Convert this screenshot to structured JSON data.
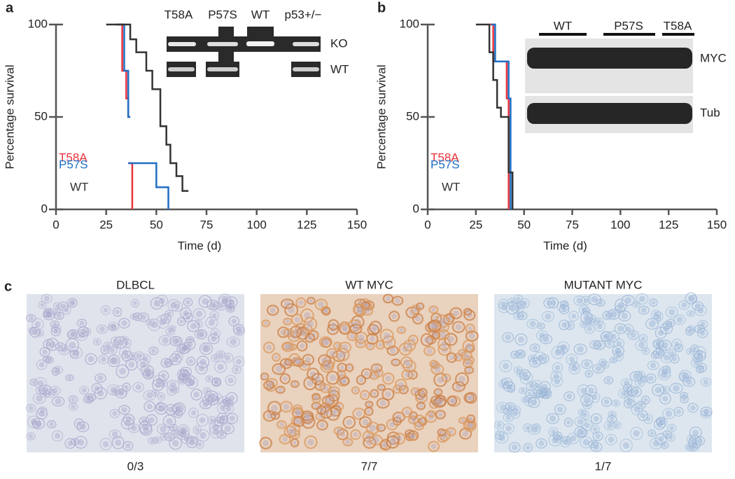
{
  "chart_data": [
    {
      "type": "survival",
      "label": "a",
      "xlabel": "Time (d)",
      "ylabel": "Percentage survival",
      "xlim": [
        0,
        150
      ],
      "ylim": [
        0,
        100
      ],
      "xticks": [
        0,
        25,
        50,
        75,
        100,
        125,
        150
      ],
      "yticks": [
        0,
        50,
        100
      ],
      "series": [
        {
          "name": "T58A",
          "color": "#e8323c",
          "x": [
            30,
            33,
            33,
            35,
            35,
            36,
            36,
            37,
            null,
            36,
            38,
            38
          ],
          "values": [
            100,
            100,
            75,
            75,
            60,
            60,
            50,
            50,
            null,
            25,
            25,
            0
          ]
        },
        {
          "name": "P57S",
          "color": "#1f6fc4",
          "x": [
            30,
            34,
            34,
            36,
            36,
            37,
            null,
            36,
            50,
            50,
            56,
            56
          ],
          "values": [
            100,
            100,
            75,
            75,
            50,
            50,
            null,
            25,
            25,
            12,
            12,
            0
          ]
        },
        {
          "name": "WT",
          "color": "#333333",
          "x": [
            25,
            37,
            37,
            40,
            40,
            45,
            45,
            48,
            48,
            52,
            52,
            55,
            55,
            57,
            57,
            60,
            60,
            63,
            63,
            66
          ],
          "values": [
            100,
            100,
            92,
            92,
            85,
            85,
            75,
            75,
            65,
            65,
            45,
            45,
            35,
            35,
            25,
            25,
            18,
            18,
            10,
            10
          ]
        }
      ],
      "inset": {
        "lanes": [
          "T58A",
          "P57S",
          "WT",
          "p53+/−"
        ],
        "rows": [
          "KO",
          "WT"
        ]
      }
    },
    {
      "type": "survival",
      "label": "b",
      "xlabel": "Time (d)",
      "ylabel": "Percentage survival",
      "xlim": [
        0,
        150
      ],
      "ylim": [
        0,
        100
      ],
      "xticks": [
        0,
        25,
        50,
        75,
        100,
        125,
        150
      ],
      "yticks": [
        0,
        50,
        100
      ],
      "series": [
        {
          "name": "T58A",
          "color": "#e8323c",
          "x": [
            32,
            34,
            34,
            41,
            41,
            42,
            42
          ],
          "values": [
            100,
            100,
            80,
            80,
            60,
            60,
            0
          ]
        },
        {
          "name": "P57S",
          "color": "#1f6fc4",
          "x": [
            33,
            35,
            35,
            42,
            42,
            43,
            43
          ],
          "values": [
            100,
            100,
            80,
            80,
            60,
            60,
            0
          ]
        },
        {
          "name": "WT",
          "color": "#333333",
          "x": [
            25,
            32,
            32,
            34,
            34,
            36,
            36,
            38,
            38,
            42,
            42,
            44,
            44
          ],
          "values": [
            100,
            100,
            85,
            85,
            70,
            70,
            55,
            55,
            50,
            50,
            20,
            20,
            0
          ]
        }
      ],
      "inset": {
        "lanes": [
          "WT",
          "P57S",
          "T58A"
        ],
        "rows": [
          "MYC",
          "Tub"
        ]
      }
    }
  ],
  "panel_c": {
    "label": "c",
    "images": [
      {
        "title": "DLBCL",
        "caption": "0/3"
      },
      {
        "title": "WT MYC",
        "caption": "7/7"
      },
      {
        "title": "MUTANT MYC",
        "caption": "1/7"
      }
    ]
  }
}
